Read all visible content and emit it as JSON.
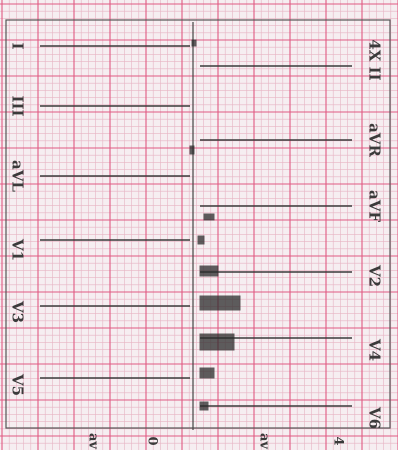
{
  "figure": {
    "kind": "12-lead ECG printout (rotated)",
    "grid_color_minor": "#e7b3c3",
    "grid_color_major": "#e05a82",
    "paper_color": "#f6eef1",
    "trace_color": "#2b2b2b"
  },
  "left_leads": [
    "I",
    "III",
    "aVL",
    "V1",
    "V3",
    "V5"
  ],
  "right_leads": [
    "4X II",
    "aVR",
    "aVF",
    "V2",
    "V4",
    "V6"
  ],
  "bottom_labels": [
    "av",
    "0",
    "av",
    "4"
  ]
}
